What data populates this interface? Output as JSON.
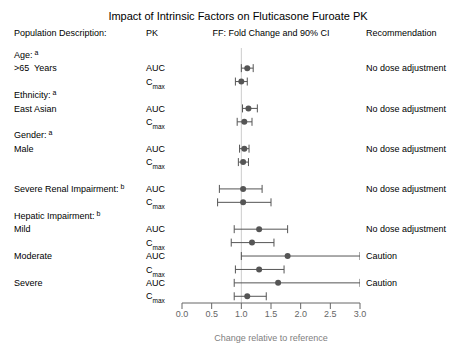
{
  "chart_data": {
    "type": "forest",
    "title": "Impact of Intrinsic Factors on Fluticasone Furoate PK",
    "xlabel": "Change relative to reference",
    "column_headers": [
      "Population Description:",
      "PK",
      "FF: Fold Change and 90% CI",
      "Recommendation"
    ],
    "categories": [
      "Age:",
      ">65  Years",
      null,
      "Ethnicity:",
      "East Asian",
      null,
      "Gender:",
      "Male",
      null,
      null,
      "Severe Renal Impairment:",
      null,
      "Hepatic Impairment:",
      "Mild",
      null,
      "Moderate",
      null,
      "Severe",
      null
    ],
    "superscripts": [
      "a",
      null,
      null,
      "a",
      null,
      null,
      "a",
      null,
      null,
      null,
      "b",
      null,
      "b",
      null,
      null,
      null,
      null,
      null,
      null
    ],
    "pk": [
      null,
      "AUC",
      "Cmax",
      null,
      "AUC",
      "Cmax",
      null,
      "AUC",
      "Cmax",
      null,
      "AUC",
      "Cmax",
      null,
      "AUC",
      "Cmax",
      "AUC",
      "Cmax",
      "AUC",
      "Cmax"
    ],
    "values": [
      null,
      1.1,
      1.0,
      null,
      1.12,
      1.05,
      null,
      1.05,
      1.03,
      null,
      1.03,
      1.03,
      null,
      1.3,
      1.18,
      1.78,
      1.3,
      1.62,
      1.1
    ],
    "lo": [
      null,
      1.0,
      0.9,
      null,
      1.02,
      0.93,
      null,
      0.97,
      0.95,
      null,
      0.63,
      0.6,
      null,
      0.88,
      0.83,
      1.0,
      0.9,
      0.88,
      0.88
    ],
    "hi": [
      null,
      1.2,
      1.1,
      null,
      1.27,
      1.18,
      null,
      1.13,
      1.12,
      null,
      1.35,
      1.5,
      null,
      1.78,
      1.55,
      3.0,
      1.72,
      3.0,
      1.42
    ],
    "recommendations": [
      null,
      "No dose adjustment",
      null,
      null,
      "No dose adjustment",
      null,
      null,
      "No dose adjustment",
      null,
      null,
      "No dose adjustment",
      null,
      null,
      "No dose adjustment",
      null,
      "Caution",
      null,
      "Caution",
      null
    ],
    "reference_x": 1.0,
    "xlim": [
      0.0,
      3.0
    ],
    "xticks": [
      {
        "value": 0.0,
        "label": "0.0"
      },
      {
        "value": 0.5,
        "label": "0.5"
      },
      {
        "value": 1.0,
        "label": "1.0"
      },
      {
        "value": 1.5,
        "label": "1.5"
      },
      {
        "value": 2.0,
        "label": "2.0"
      },
      {
        "value": 2.5,
        "label": "2.5"
      },
      {
        "value": 3.0,
        "label": "3.0"
      }
    ],
    "color": "#555555"
  }
}
